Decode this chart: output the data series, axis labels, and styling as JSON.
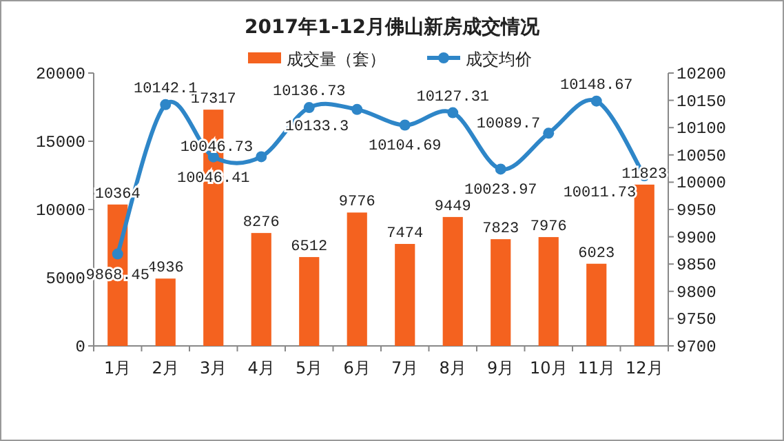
{
  "chart_data": {
    "type": "bar",
    "title": "2017年1-12月佛山新房成交情况",
    "categories": [
      "1月",
      "2月",
      "3月",
      "4月",
      "5月",
      "6月",
      "7月",
      "8月",
      "9月",
      "10月",
      "11月",
      "12月"
    ],
    "series": [
      {
        "name": "成交量（套）",
        "color": "#f4621f",
        "values": [
          10364,
          4936,
          17317,
          8276,
          6512,
          9776,
          7474,
          9449,
          7823,
          7976,
          6023,
          11823
        ]
      },
      {
        "name": "成交均价",
        "type": "line",
        "axis": "y2",
        "color": "#2e86c8",
        "marker": "circle",
        "values": [
          9868.45,
          10142.1,
          10046.41,
          10046.73,
          10136.73,
          10133.3,
          10104.69,
          10127.31,
          10023.97,
          10089.7,
          10148.67,
          10011.73
        ]
      }
    ],
    "ylim": [
      0,
      20000
    ],
    "yticks": [
      0,
      5000,
      10000,
      15000,
      20000
    ],
    "y2lim": [
      9700,
      10200
    ],
    "y2ticks": [
      9700,
      9750,
      9800,
      9850,
      9900,
      9950,
      10000,
      10050,
      10100,
      10150,
      10200
    ],
    "data_labels": true,
    "legend": "top",
    "grid": false
  }
}
